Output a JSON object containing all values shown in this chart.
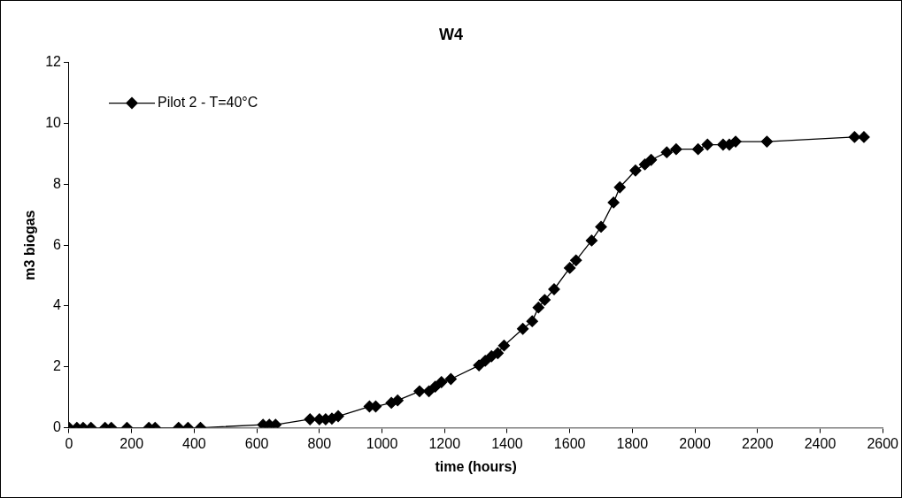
{
  "chart_data": {
    "type": "line",
    "title": "W4",
    "xlabel": "time (hours)",
    "ylabel": "m3 biogas",
    "x": [
      0,
      25,
      45,
      70,
      115,
      135,
      185,
      255,
      275,
      350,
      380,
      420,
      620,
      640,
      660,
      770,
      800,
      820,
      840,
      860,
      960,
      980,
      1030,
      1050,
      1120,
      1150,
      1170,
      1190,
      1220,
      1310,
      1330,
      1350,
      1370,
      1390,
      1450,
      1480,
      1500,
      1520,
      1550,
      1600,
      1620,
      1670,
      1700,
      1740,
      1760,
      1810,
      1840,
      1860,
      1910,
      1940,
      2010,
      2040,
      2090,
      2110,
      2130,
      2230,
      2510,
      2540
    ],
    "series": [
      {
        "name": "Pilot 2 - T=40°C",
        "color": "#000000",
        "values": [
          0,
          0,
          0,
          0,
          0,
          0,
          0,
          0,
          0,
          0,
          0,
          0,
          0.1,
          0.1,
          0.1,
          0.28,
          0.28,
          0.28,
          0.3,
          0.38,
          0.7,
          0.7,
          0.82,
          0.9,
          1.2,
          1.2,
          1.35,
          1.5,
          1.6,
          2.05,
          2.2,
          2.35,
          2.45,
          2.7,
          3.25,
          3.5,
          3.95,
          4.2,
          4.55,
          5.25,
          5.5,
          6.15,
          6.6,
          7.4,
          7.9,
          8.45,
          8.65,
          8.8,
          9.05,
          9.15,
          9.15,
          9.3,
          9.3,
          9.3,
          9.4,
          9.4,
          9.55,
          9.55
        ]
      }
    ],
    "xlim": [
      0,
      2600
    ],
    "xticks": [
      0,
      200,
      400,
      600,
      800,
      1000,
      1200,
      1400,
      1600,
      1800,
      2000,
      2200,
      2400,
      2600
    ],
    "ylim": [
      0,
      12
    ],
    "yticks": [
      0,
      2,
      4,
      6,
      8,
      10,
      12
    ],
    "grid": false,
    "legend": "top left",
    "marker": "diamond",
    "line_style": "solid"
  }
}
